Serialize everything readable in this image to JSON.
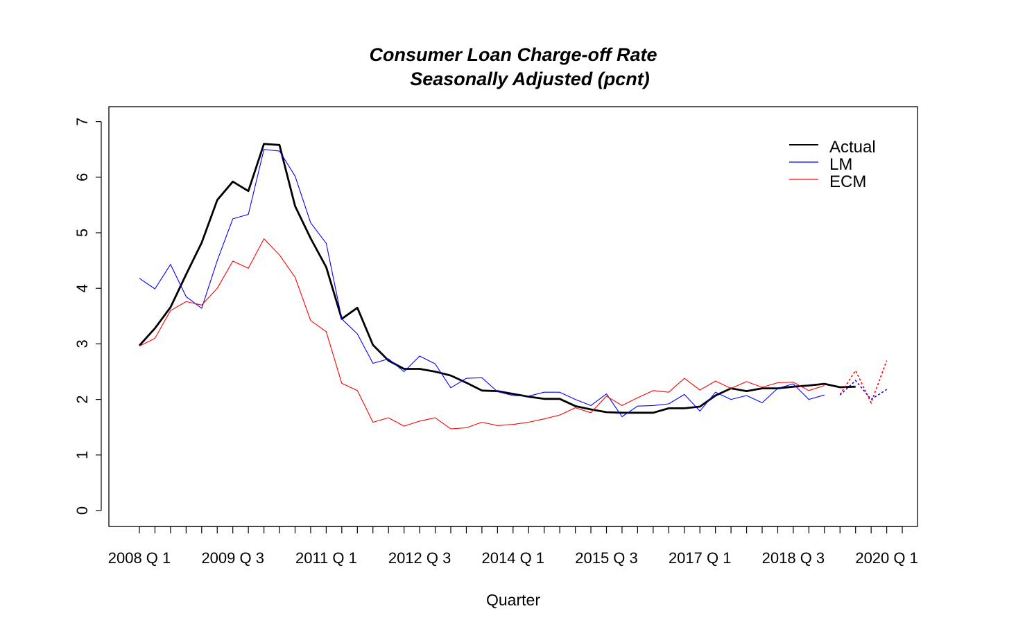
{
  "chart_data": {
    "type": "line",
    "title": "Consumer Loan Charge-off Rate",
    "subtitle": "Seasonally Adjusted (pcnt)",
    "xlabel": "Quarter",
    "ylabel": "",
    "ylim": [
      0,
      7
    ],
    "yticks": [
      0,
      1,
      2,
      3,
      4,
      5,
      6,
      7
    ],
    "x_index_range": [
      1,
      50
    ],
    "xtick_labels": [
      {
        "index": 1,
        "label": "2008 Q 1"
      },
      {
        "index": 7,
        "label": "2009 Q 3"
      },
      {
        "index": 13,
        "label": "2011 Q 1"
      },
      {
        "index": 19,
        "label": "2012 Q 3"
      },
      {
        "index": 25,
        "label": "2014 Q 1"
      },
      {
        "index": 31,
        "label": "2015 Q 3"
      },
      {
        "index": 37,
        "label": "2017 Q 1"
      },
      {
        "index": 43,
        "label": "2018 Q 3"
      },
      {
        "index": 49,
        "label": "2020 Q 1"
      }
    ],
    "legend_position": "top-right",
    "series": [
      {
        "name": "Actual",
        "color": "#000000",
        "width": "thick",
        "values": [
          2.97,
          3.28,
          3.66,
          4.25,
          4.82,
          5.59,
          5.92,
          5.75,
          6.6,
          6.58,
          5.48,
          4.9,
          4.38,
          3.45,
          3.65,
          2.98,
          2.7,
          2.55,
          2.55,
          2.5,
          2.43,
          2.3,
          2.16,
          2.15,
          2.1,
          2.05,
          2.01,
          2.01,
          1.88,
          1.82,
          1.77,
          1.76,
          1.76,
          1.76,
          1.84,
          1.84,
          1.87,
          2.07,
          2.2,
          2.15,
          2.2,
          2.2,
          2.23,
          2.25,
          2.28,
          2.22,
          2.23
        ]
      },
      {
        "name": "LM",
        "color": "#0000ff",
        "width": "thin",
        "values": [
          4.18,
          3.99,
          4.43,
          3.85,
          3.64,
          4.5,
          5.25,
          5.33,
          6.5,
          6.47,
          6.02,
          5.18,
          4.81,
          3.45,
          3.18,
          2.65,
          2.73,
          2.5,
          2.78,
          2.64,
          2.21,
          2.38,
          2.39,
          2.14,
          2.07,
          2.06,
          2.13,
          2.13,
          2.0,
          1.89,
          2.1,
          1.69,
          1.88,
          1.89,
          1.92,
          2.09,
          1.79,
          2.13,
          2.0,
          2.07,
          1.94,
          2.2,
          2.28,
          2.0,
          2.08
        ],
        "forecast_values": [
          2.08,
          2.34,
          2.0,
          2.18
        ],
        "forecast_start_index": 46
      },
      {
        "name": "ECM",
        "color": "#ff0000",
        "width": "thin",
        "values": [
          2.96,
          3.1,
          3.6,
          3.76,
          3.7,
          4.0,
          4.49,
          4.36,
          4.89,
          4.6,
          4.2,
          3.42,
          3.22,
          2.29,
          2.16,
          1.59,
          1.67,
          1.52,
          1.61,
          1.67,
          1.47,
          1.49,
          1.59,
          1.53,
          1.55,
          1.59,
          1.65,
          1.72,
          1.85,
          1.76,
          2.06,
          1.89,
          2.03,
          2.16,
          2.13,
          2.38,
          2.17,
          2.33,
          2.2,
          2.32,
          2.22,
          2.3,
          2.31,
          2.16,
          2.25
        ],
        "forecast_values": [
          2.09,
          2.52,
          1.94,
          2.7
        ],
        "forecast_start_index": 46
      }
    ]
  }
}
